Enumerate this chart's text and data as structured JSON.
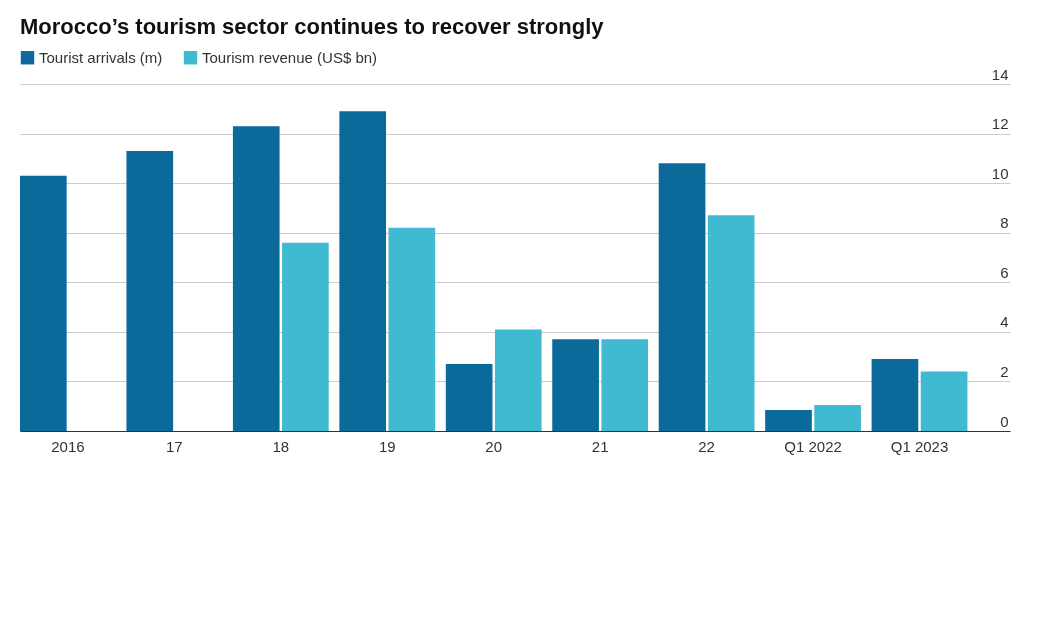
{
  "chart_data": {
    "type": "bar",
    "title": "Morocco’s tourism sector continues to recover strongly",
    "categories": [
      "2016",
      "17",
      "18",
      "19",
      "20",
      "21",
      "22",
      "Q1 2022",
      "Q1 2023"
    ],
    "series": [
      {
        "name": "Tourist arrivals (m)",
        "color": "#0b6a9a",
        "values": [
          10.3,
          11.3,
          12.3,
          12.9,
          2.7,
          3.7,
          10.8,
          0.85,
          2.9
        ]
      },
      {
        "name": "Tourism revenue (US$ bn)",
        "color": "#3fbad0",
        "values": [
          null,
          null,
          7.6,
          8.2,
          4.1,
          3.7,
          8.7,
          1.05,
          2.4
        ]
      }
    ],
    "ylim": [
      0,
      14
    ],
    "yticks": [
      0,
      2,
      4,
      6,
      8,
      10,
      12,
      14
    ],
    "grid": "y",
    "legend": "top left"
  }
}
